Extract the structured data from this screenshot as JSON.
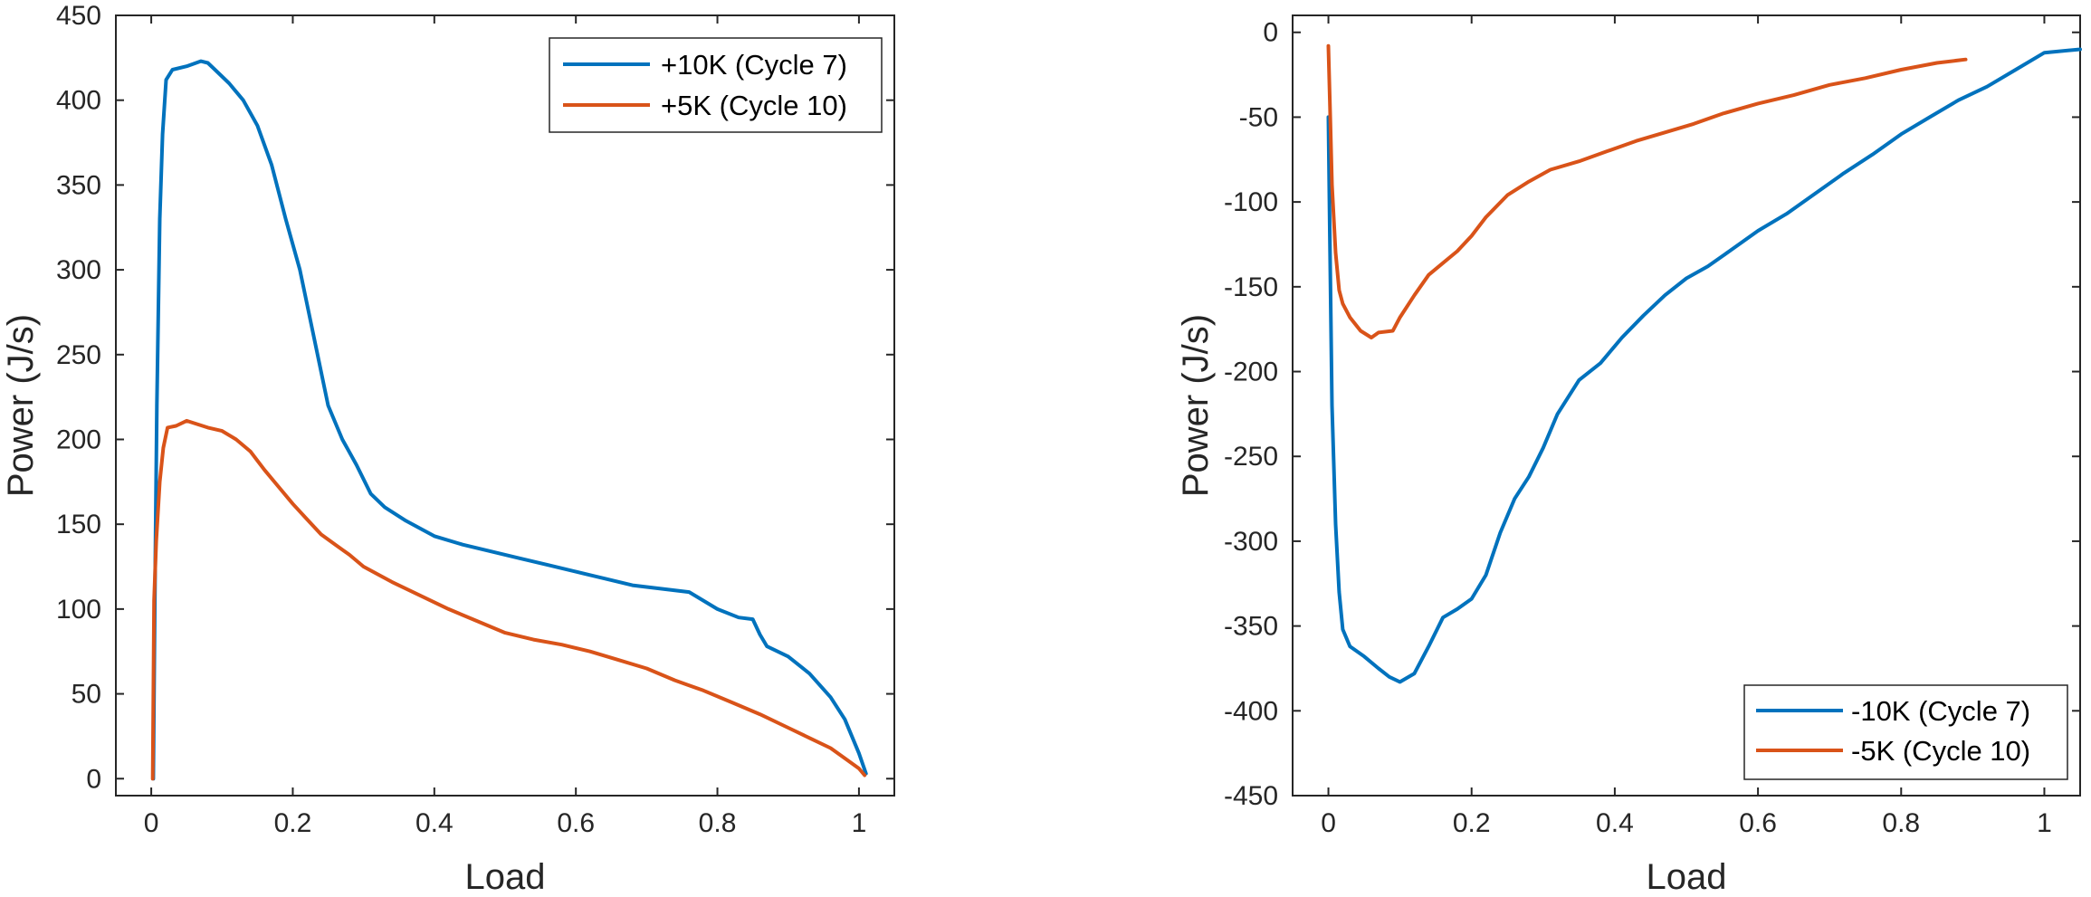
{
  "chart_data": [
    {
      "type": "line",
      "title": "",
      "xlabel": "Load",
      "ylabel": "Power (J/s)",
      "xlim": [
        -0.05,
        1.05
      ],
      "ylim": [
        -10,
        450
      ],
      "xticks": [
        0,
        0.2,
        0.4,
        0.6,
        0.8,
        1
      ],
      "xtick_labels": [
        "0",
        "0.2",
        "0.4",
        "0.6",
        "0.8",
        "1"
      ],
      "yticks": [
        0,
        50,
        100,
        150,
        200,
        250,
        300,
        350,
        400,
        450
      ],
      "ytick_labels": [
        "0",
        "50",
        "100",
        "150",
        "200",
        "250",
        "300",
        "350",
        "400",
        "450"
      ],
      "legend_position": "top-right",
      "series": [
        {
          "name": "+10K (Cycle 7)",
          "color": "#0072BD",
          "x": [
            0.003,
            0.005,
            0.008,
            0.012,
            0.016,
            0.021,
            0.03,
            0.05,
            0.07,
            0.08,
            0.09,
            0.11,
            0.13,
            0.15,
            0.17,
            0.19,
            0.21,
            0.23,
            0.25,
            0.27,
            0.29,
            0.31,
            0.33,
            0.36,
            0.4,
            0.44,
            0.48,
            0.52,
            0.56,
            0.6,
            0.64,
            0.68,
            0.72,
            0.76,
            0.8,
            0.83,
            0.85,
            0.86,
            0.87,
            0.9,
            0.93,
            0.96,
            0.98,
            1.0,
            1.01
          ],
          "y": [
            0,
            100,
            220,
            330,
            380,
            412,
            418,
            420,
            423,
            422,
            418,
            410,
            400,
            385,
            362,
            330,
            300,
            260,
            220,
            200,
            185,
            168,
            160,
            152,
            143,
            138,
            134,
            130,
            126,
            122,
            118,
            114,
            112,
            110,
            100,
            95,
            94,
            85,
            78,
            72,
            62,
            48,
            35,
            15,
            3
          ]
        },
        {
          "name": "+5K (Cycle 10)",
          "color": "#D95319",
          "x": [
            0.002,
            0.004,
            0.007,
            0.012,
            0.017,
            0.023,
            0.035,
            0.05,
            0.065,
            0.08,
            0.1,
            0.12,
            0.14,
            0.16,
            0.18,
            0.2,
            0.22,
            0.24,
            0.26,
            0.28,
            0.3,
            0.34,
            0.38,
            0.42,
            0.46,
            0.5,
            0.54,
            0.58,
            0.62,
            0.66,
            0.7,
            0.74,
            0.78,
            0.82,
            0.86,
            0.9,
            0.93,
            0.96,
            0.98,
            1.0,
            1.008
          ],
          "y": [
            0,
            105,
            140,
            175,
            195,
            207,
            208,
            211,
            209,
            207,
            205,
            200,
            193,
            182,
            172,
            162,
            153,
            144,
            138,
            132,
            125,
            116,
            108,
            100,
            93,
            86,
            82,
            79,
            75,
            70,
            65,
            58,
            52,
            45,
            38,
            30,
            24,
            18,
            12,
            6,
            2
          ]
        }
      ]
    },
    {
      "type": "line",
      "title": "",
      "xlabel": "Load",
      "ylabel": "Power (J/s)",
      "xlim": [
        -0.05,
        1.05
      ],
      "ylim": [
        -450,
        10
      ],
      "xticks": [
        0,
        0.2,
        0.4,
        0.6,
        0.8,
        1
      ],
      "xtick_labels": [
        "0",
        "0.2",
        "0.4",
        "0.6",
        "0.8",
        "1"
      ],
      "yticks": [
        0,
        -50,
        -100,
        -150,
        -200,
        -250,
        -300,
        -350,
        -400,
        -450
      ],
      "ytick_labels": [
        "0",
        "-50",
        "-100",
        "-150",
        "-200",
        "-250",
        "-300",
        "-350",
        "-400",
        "-450"
      ],
      "legend_position": "bottom-right",
      "series": [
        {
          "name": "-10K (Cycle 7)",
          "color": "#0072BD",
          "x": [
            0.0,
            0.002,
            0.005,
            0.01,
            0.015,
            0.02,
            0.03,
            0.05,
            0.07,
            0.085,
            0.1,
            0.12,
            0.14,
            0.16,
            0.18,
            0.2,
            0.22,
            0.24,
            0.26,
            0.28,
            0.3,
            0.32,
            0.35,
            0.38,
            0.41,
            0.44,
            0.47,
            0.5,
            0.53,
            0.56,
            0.6,
            0.64,
            0.68,
            0.72,
            0.76,
            0.8,
            0.84,
            0.88,
            0.92,
            0.96,
            1.0,
            1.05
          ],
          "y": [
            -50,
            -120,
            -220,
            -290,
            -330,
            -352,
            -362,
            -368,
            -375,
            -380,
            -383,
            -378,
            -362,
            -345,
            -340,
            -334,
            -320,
            -295,
            -275,
            -262,
            -245,
            -225,
            -205,
            -195,
            -180,
            -167,
            -155,
            -145,
            -138,
            -129,
            -117,
            -107,
            -95,
            -83,
            -72,
            -60,
            -50,
            -40,
            -32,
            -22,
            -12,
            -10
          ]
        },
        {
          "name": "-5K (Cycle 10)",
          "color": "#D95319",
          "x": [
            0.0,
            0.002,
            0.005,
            0.01,
            0.015,
            0.02,
            0.03,
            0.045,
            0.06,
            0.07,
            0.09,
            0.1,
            0.12,
            0.14,
            0.16,
            0.18,
            0.2,
            0.22,
            0.25,
            0.28,
            0.31,
            0.35,
            0.39,
            0.43,
            0.47,
            0.51,
            0.55,
            0.6,
            0.65,
            0.7,
            0.75,
            0.8,
            0.85,
            0.89
          ],
          "y": [
            -8,
            -40,
            -90,
            -130,
            -152,
            -160,
            -168,
            -176,
            -180,
            -177,
            -176,
            -168,
            -155,
            -143,
            -136,
            -129,
            -120,
            -109,
            -96,
            -88,
            -81,
            -76,
            -70,
            -64,
            -59,
            -54,
            -48,
            -42,
            -37,
            -31,
            -27,
            -22,
            -18,
            -16
          ]
        }
      ]
    }
  ]
}
